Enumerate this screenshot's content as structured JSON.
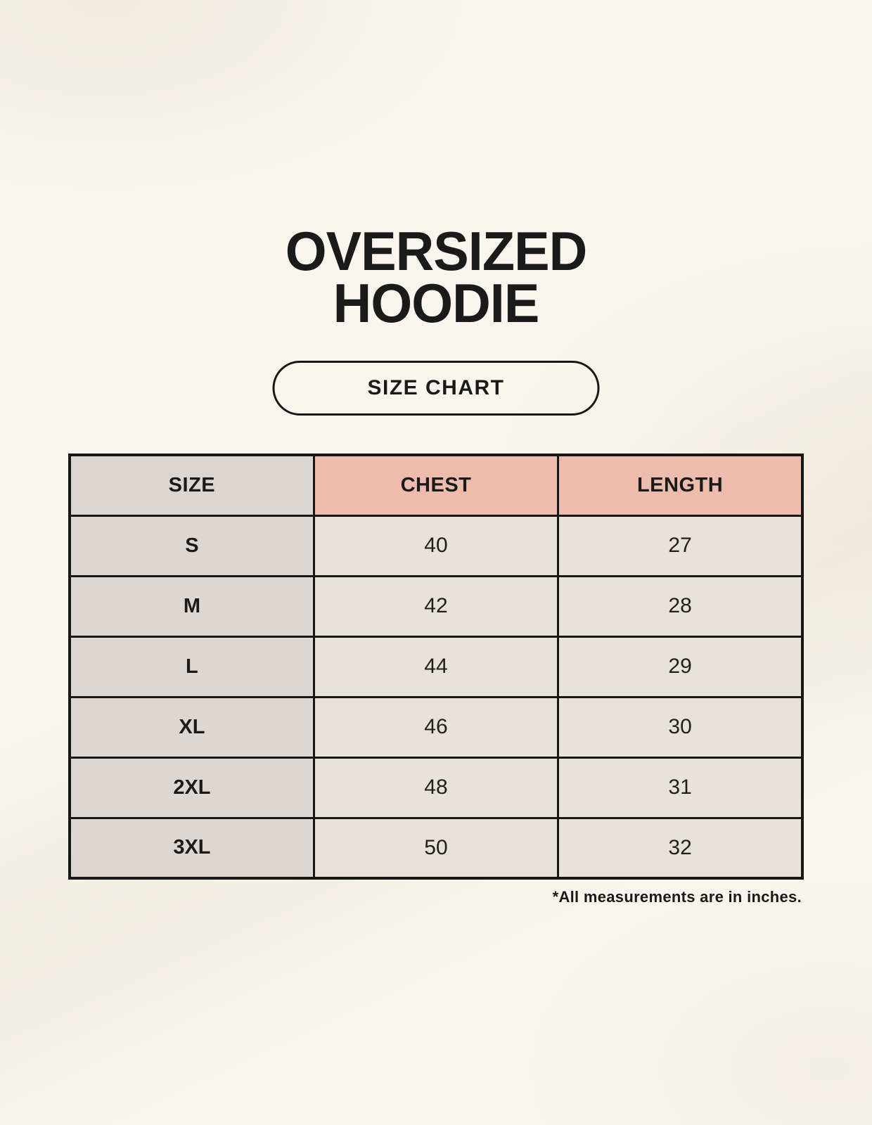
{
  "header": {
    "title_line1": "OVERSIZED",
    "title_line2": "HOODIE",
    "size_chart_label": "SIZE CHART"
  },
  "table": {
    "columns": [
      "SIZE",
      "CHEST",
      "LENGTH"
    ],
    "rows": [
      [
        "S",
        "40",
        "27"
      ],
      [
        "M",
        "42",
        "28"
      ],
      [
        "L",
        "44",
        "29"
      ],
      [
        "XL",
        "46",
        "30"
      ],
      [
        "2XL",
        "48",
        "31"
      ],
      [
        "3XL",
        "50",
        "32"
      ]
    ],
    "footnote": "*All measurements are in inches."
  },
  "colors": {
    "background": "#faf6ee",
    "header-pink": "#eebcac",
    "header-gray": "#ddd6d0",
    "col1-gray": "#ded7d1",
    "cell-cream": "#e9e2d8",
    "border": "#171717",
    "text": "#1a1a1a"
  },
  "chart_data": {
    "type": "table",
    "title": "OVERSIZED HOODIE",
    "subtitle": "SIZE CHART",
    "columns": [
      "SIZE",
      "CHEST",
      "LENGTH"
    ],
    "rows": [
      {
        "size": "S",
        "chest": 40,
        "length": 27
      },
      {
        "size": "M",
        "chest": 42,
        "length": 28
      },
      {
        "size": "L",
        "chest": 44,
        "length": 29
      },
      {
        "size": "XL",
        "chest": 46,
        "length": 30
      },
      {
        "size": "2XL",
        "chest": 48,
        "length": 31
      },
      {
        "size": "3XL",
        "chest": 50,
        "length": 32
      }
    ],
    "note": "*All measurements are in inches.",
    "units": "inches"
  }
}
